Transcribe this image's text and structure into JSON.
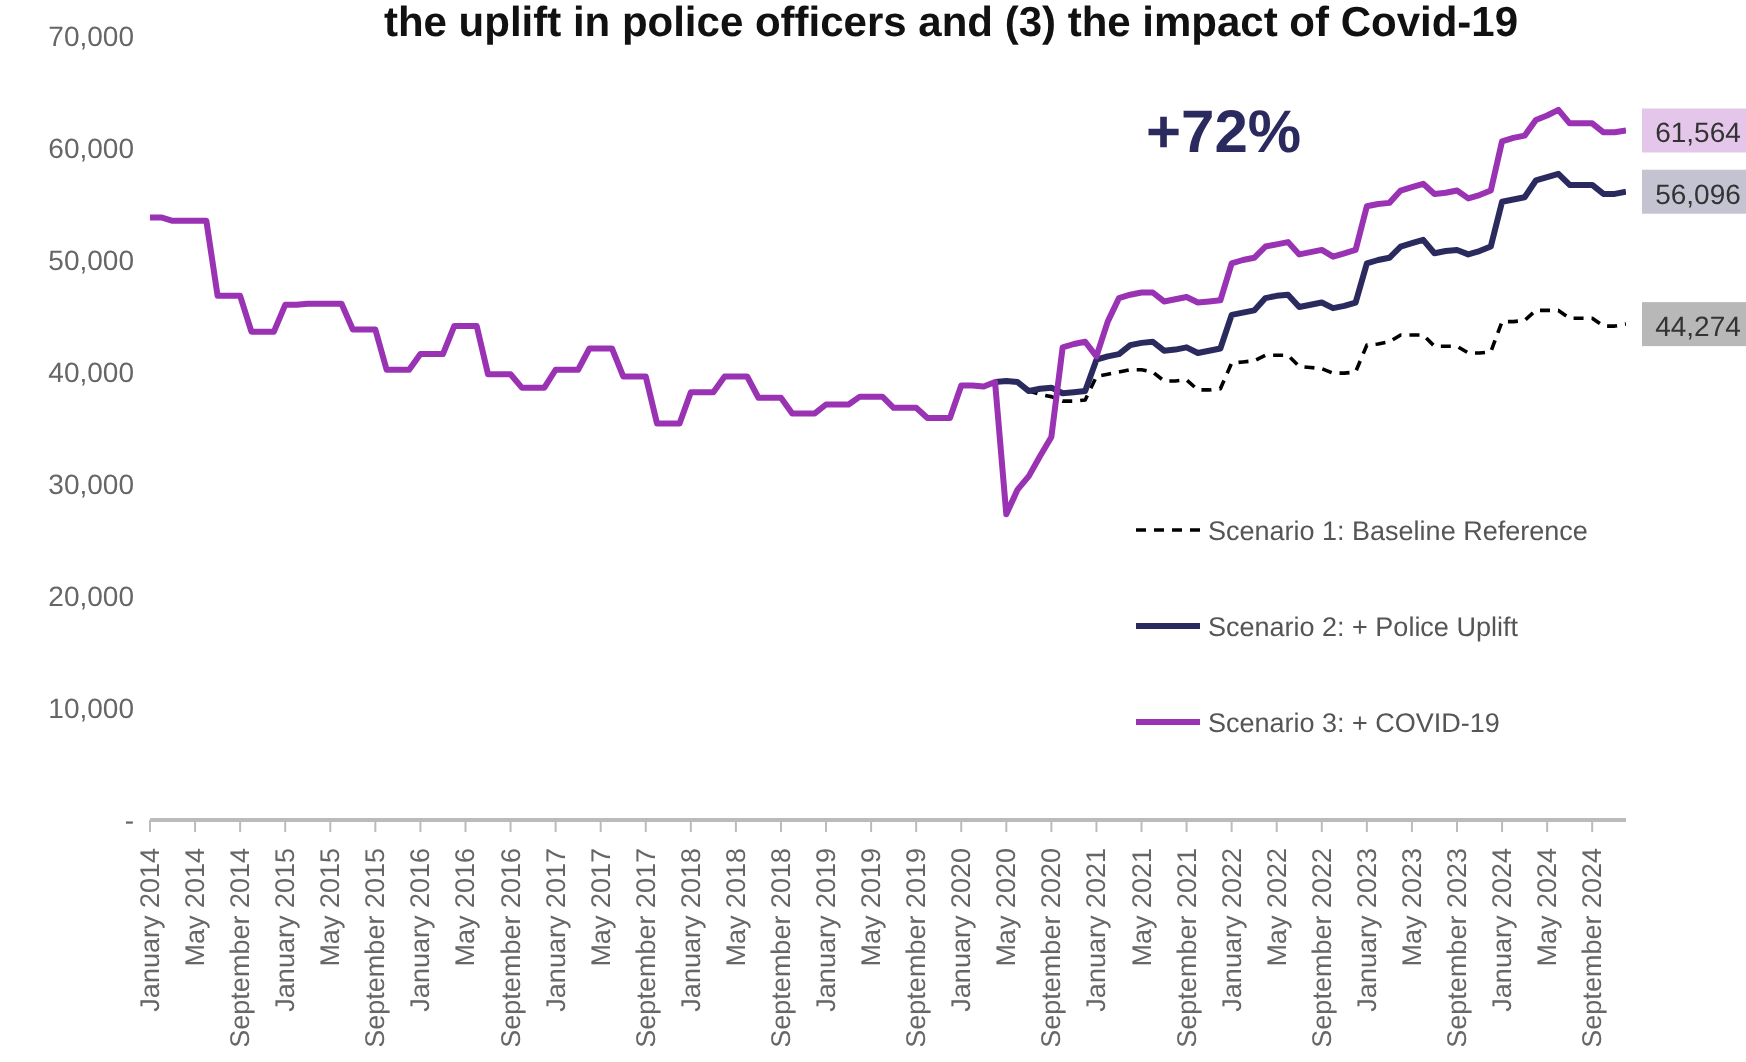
{
  "chart_data": {
    "type": "line",
    "title": "the uplift in police officers and (3) the impact of Covid-19",
    "categories": [
      "January 2014",
      null,
      null,
      null,
      "May 2014",
      null,
      null,
      null,
      "September 2014",
      null,
      null,
      null,
      "January 2015",
      null,
      null,
      null,
      "May 2015",
      null,
      null,
      null,
      "September 2015",
      null,
      null,
      null,
      "January 2016",
      null,
      null,
      null,
      "May 2016",
      null,
      null,
      null,
      "September 2016",
      null,
      null,
      null,
      "January 2017",
      null,
      null,
      null,
      "May 2017",
      null,
      null,
      null,
      "September 2017",
      null,
      null,
      null,
      "January 2018",
      null,
      null,
      null,
      "May 2018",
      null,
      null,
      null,
      "September 2018",
      null,
      null,
      null,
      "January 2019",
      null,
      null,
      null,
      "May 2019",
      null,
      null,
      null,
      "September 2019",
      null,
      null,
      null,
      "January 2020",
      null,
      null,
      null,
      "May 2020",
      null,
      null,
      null,
      "September 2020",
      null,
      null,
      null,
      "January 2021",
      null,
      null,
      null,
      "May 2021",
      null,
      null,
      null,
      "September 2021",
      null,
      null,
      null,
      "January 2022",
      null,
      null,
      null,
      "May 2022",
      null,
      null,
      null,
      "September 2022",
      null,
      null,
      null,
      "January 2023",
      null,
      null,
      null,
      "May 2023",
      null,
      null,
      null,
      "September 2023",
      null,
      null,
      null,
      "January 2024",
      null,
      null,
      null,
      "May 2024",
      null,
      null,
      null,
      "September 2024",
      null,
      null,
      null
    ],
    "series": [
      {
        "name": "Scenario 1: Baseline Reference",
        "color": "#000000",
        "line_style": "dashed",
        "values": [
          null,
          null,
          null,
          null,
          null,
          null,
          null,
          null,
          null,
          null,
          null,
          null,
          null,
          null,
          null,
          null,
          null,
          null,
          null,
          null,
          null,
          null,
          null,
          null,
          null,
          null,
          null,
          null,
          null,
          null,
          null,
          null,
          null,
          null,
          null,
          null,
          null,
          null,
          null,
          null,
          null,
          null,
          null,
          null,
          null,
          null,
          null,
          null,
          null,
          null,
          null,
          null,
          null,
          null,
          null,
          null,
          null,
          null,
          null,
          null,
          null,
          null,
          null,
          null,
          null,
          null,
          null,
          null,
          null,
          null,
          null,
          null,
          null,
          null,
          null,
          39100,
          39200,
          39100,
          38300,
          38000,
          37800,
          37400,
          37400,
          37500,
          39600,
          39800,
          40000,
          40200,
          40200,
          40000,
          39200,
          39200,
          39300,
          38400,
          38400,
          38500,
          40800,
          40900,
          41000,
          41500,
          41500,
          41500,
          40500,
          40400,
          40300,
          39900,
          39900,
          40000,
          42400,
          42500,
          42700,
          43300,
          43300,
          43300,
          42300,
          42300,
          42300,
          41700,
          41700,
          41800,
          44500,
          44500,
          44600,
          45500,
          45500,
          45500,
          44800,
          44800,
          44800,
          44100,
          44100,
          44274
        ],
        "value_labels": [
          null,
          null,
          null,
          null,
          null,
          null,
          null,
          null,
          null,
          null,
          null,
          null,
          null,
          null,
          null,
          null,
          null,
          null,
          null,
          null,
          null,
          null,
          null,
          null,
          null,
          null,
          null,
          null,
          null,
          null,
          null,
          null,
          null,
          null,
          null,
          null,
          null,
          null,
          null,
          null,
          null,
          null,
          null,
          null,
          null,
          null,
          null,
          null,
          null,
          null,
          null,
          null,
          null,
          null,
          null,
          null,
          null,
          null,
          null,
          null,
          null,
          null,
          null,
          null,
          null,
          null,
          null,
          null,
          null,
          null,
          null,
          null,
          null,
          null,
          null,
          null,
          null,
          null,
          null,
          null,
          null,
          null,
          null,
          null,
          null,
          null,
          null,
          null,
          null,
          null,
          null,
          null,
          null,
          null,
          null,
          null,
          null,
          null,
          null,
          null,
          null,
          null,
          null,
          null,
          null,
          null,
          null,
          null,
          null,
          null,
          null,
          null,
          null,
          null,
          null,
          null,
          null,
          null,
          null,
          null,
          null,
          null,
          null,
          null,
          null,
          null,
          null,
          null,
          null,
          null,
          null,
          "44,274"
        ]
      },
      {
        "name": "Scenario 2: + Police Uplift",
        "color": "#2b2a5e",
        "values": [
          null,
          null,
          null,
          null,
          null,
          null,
          null,
          null,
          null,
          null,
          null,
          null,
          null,
          null,
          null,
          null,
          null,
          null,
          null,
          null,
          null,
          null,
          null,
          null,
          null,
          null,
          null,
          null,
          null,
          null,
          null,
          null,
          null,
          null,
          null,
          null,
          null,
          null,
          null,
          null,
          null,
          null,
          null,
          null,
          null,
          null,
          null,
          null,
          null,
          null,
          null,
          null,
          null,
          null,
          null,
          null,
          null,
          null,
          null,
          null,
          null,
          null,
          null,
          null,
          null,
          null,
          null,
          null,
          null,
          null,
          null,
          null,
          null,
          null,
          null,
          39100,
          39200,
          39100,
          38300,
          38500,
          38600,
          38100,
          38200,
          38300,
          41100,
          41400,
          41600,
          42400,
          42600,
          42700,
          41900,
          42000,
          42200,
          41700,
          41900,
          42100,
          45100,
          45300,
          45500,
          46600,
          46800,
          46900,
          45800,
          46000,
          46200,
          45700,
          45900,
          46200,
          49700,
          50000,
          50200,
          51200,
          51500,
          51800,
          50600,
          50800,
          50900,
          50500,
          50800,
          51200,
          55200,
          55400,
          55600,
          57100,
          57400,
          57700,
          56700,
          56700,
          56700,
          55900,
          55900,
          56096
        ],
        "value_labels": [
          null,
          null,
          null,
          null,
          null,
          null,
          null,
          null,
          null,
          null,
          null,
          null,
          null,
          null,
          null,
          null,
          null,
          null,
          null,
          null,
          null,
          null,
          null,
          null,
          null,
          null,
          null,
          null,
          null,
          null,
          null,
          null,
          null,
          null,
          null,
          null,
          null,
          null,
          null,
          null,
          null,
          null,
          null,
          null,
          null,
          null,
          null,
          null,
          null,
          null,
          null,
          null,
          null,
          null,
          null,
          null,
          null,
          null,
          null,
          null,
          null,
          null,
          null,
          null,
          null,
          null,
          null,
          null,
          null,
          null,
          null,
          null,
          null,
          null,
          null,
          null,
          null,
          null,
          null,
          null,
          null,
          null,
          null,
          null,
          null,
          null,
          null,
          null,
          null,
          null,
          null,
          null,
          null,
          null,
          null,
          null,
          null,
          null,
          null,
          null,
          null,
          null,
          null,
          null,
          null,
          null,
          null,
          null,
          null,
          null,
          null,
          null,
          null,
          null,
          null,
          null,
          null,
          null,
          null,
          null,
          null,
          null,
          null,
          null,
          null,
          null,
          null,
          null,
          null,
          null,
          null,
          "56,096"
        ]
      },
      {
        "name": "Scenario 3: + COVID-19",
        "color": "#9a32b4",
        "values": [
          53800,
          53800,
          53500,
          53500,
          53500,
          53500,
          46800,
          46800,
          46800,
          43600,
          43600,
          43600,
          46000,
          46000,
          46100,
          46100,
          46100,
          46100,
          43800,
          43800,
          43800,
          40200,
          40200,
          40200,
          41600,
          41600,
          41600,
          44100,
          44100,
          44100,
          39800,
          39800,
          39800,
          38600,
          38600,
          38600,
          40200,
          40200,
          40200,
          42100,
          42100,
          42100,
          39600,
          39600,
          39600,
          35400,
          35400,
          35400,
          38200,
          38200,
          38200,
          39600,
          39600,
          39600,
          37700,
          37700,
          37700,
          36300,
          36300,
          36300,
          37100,
          37100,
          37100,
          37800,
          37800,
          37800,
          36800,
          36800,
          36800,
          35900,
          35900,
          35900,
          38800,
          38800,
          38700,
          39100,
          27300,
          29500,
          30700,
          32500,
          34200,
          42200,
          42500,
          42700,
          41400,
          44500,
          46600,
          46900,
          47100,
          47100,
          46300,
          46500,
          46700,
          46200,
          46300,
          46400,
          49700,
          50000,
          50200,
          51200,
          51400,
          51600,
          50500,
          50700,
          50900,
          50300,
          50600,
          50900,
          54800,
          55000,
          55100,
          56200,
          56500,
          56800,
          55900,
          56000,
          56200,
          55500,
          55800,
          56200,
          60600,
          60900,
          61100,
          62500,
          62900,
          63400,
          62200,
          62200,
          62200,
          61400,
          61400,
          61564
        ],
        "value_labels": [
          null,
          null,
          null,
          null,
          null,
          null,
          null,
          null,
          null,
          null,
          null,
          null,
          null,
          null,
          null,
          null,
          null,
          null,
          null,
          null,
          null,
          null,
          null,
          null,
          null,
          null,
          null,
          null,
          null,
          null,
          null,
          null,
          null,
          null,
          null,
          null,
          null,
          null,
          null,
          null,
          null,
          null,
          null,
          null,
          null,
          null,
          null,
          null,
          null,
          null,
          null,
          null,
          null,
          null,
          null,
          null,
          null,
          null,
          null,
          null,
          null,
          null,
          null,
          null,
          null,
          null,
          null,
          null,
          null,
          null,
          null,
          null,
          null,
          null,
          null,
          null,
          null,
          null,
          null,
          null,
          null,
          null,
          null,
          null,
          null,
          null,
          null,
          null,
          null,
          null,
          null,
          null,
          null,
          null,
          null,
          null,
          null,
          null,
          null,
          null,
          null,
          null,
          null,
          null,
          null,
          null,
          null,
          null,
          null,
          null,
          null,
          null,
          null,
          null,
          null,
          null,
          null,
          null,
          null,
          null,
          null,
          null,
          null,
          null,
          null,
          null,
          null,
          null,
          null,
          null,
          null,
          "61,564"
        ]
      }
    ],
    "ylim": [
      0,
      70000
    ],
    "yticks": [
      {
        "value": 0,
        "label": "-"
      },
      {
        "value": 10000,
        "label": "10,000"
      },
      {
        "value": 20000,
        "label": "20,000"
      },
      {
        "value": 30000,
        "label": "30,000"
      },
      {
        "value": 40000,
        "label": "40,000"
      },
      {
        "value": 50000,
        "label": "50,000"
      },
      {
        "value": 60000,
        "label": "60,000"
      },
      {
        "value": 70000,
        "label": "70,000"
      }
    ],
    "annotations": [
      "+72%"
    ],
    "grid": false,
    "legend": "right",
    "marker": "none"
  }
}
